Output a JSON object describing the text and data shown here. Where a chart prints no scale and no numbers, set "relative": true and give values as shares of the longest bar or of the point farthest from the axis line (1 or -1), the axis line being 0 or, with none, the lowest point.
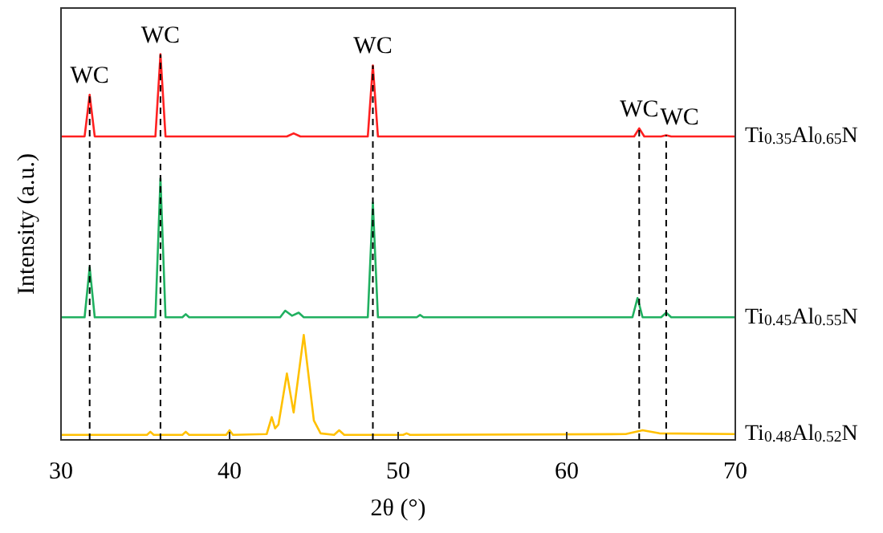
{
  "chart_data": {
    "type": "line",
    "xlabel": "2θ (°)",
    "ylabel": "Intensity (a.u.)",
    "relative": true,
    "xlim": [
      30,
      70
    ],
    "xticks": [
      30,
      40,
      50,
      60,
      70
    ],
    "series": [
      {
        "name": "Ti$_{0.35}$Al$_{0.65}$N",
        "color": "#ff2020",
        "x": [
          30,
          31.4,
          31.7,
          32.0,
          35.6,
          35.9,
          36.2,
          43.4,
          43.8,
          44.2,
          48.2,
          48.5,
          48.8,
          64.0,
          64.3,
          64.6,
          65.6,
          65.9,
          66.2,
          70
        ],
        "values": [
          0.787,
          0.787,
          0.895,
          0.787,
          0.787,
          1.0,
          0.787,
          0.787,
          0.795,
          0.787,
          0.787,
          0.971,
          0.787,
          0.787,
          0.808,
          0.787,
          0.787,
          0.79,
          0.787,
          0.787
        ]
      },
      {
        "name": "Ti$_{0.45}$Al$_{0.55}$N",
        "color": "#20b060",
        "x": [
          30,
          31.4,
          31.7,
          32.0,
          35.6,
          35.9,
          36.2,
          37.2,
          37.4,
          37.6,
          43.0,
          43.3,
          43.7,
          44.1,
          44.4,
          48.2,
          48.5,
          48.8,
          51.1,
          51.3,
          51.5,
          63.9,
          64.2,
          64.5,
          65.6,
          65.9,
          66.2,
          70
        ],
        "values": [
          0.318,
          0.318,
          0.448,
          0.318,
          0.318,
          0.678,
          0.318,
          0.318,
          0.326,
          0.318,
          0.318,
          0.335,
          0.322,
          0.33,
          0.318,
          0.318,
          0.615,
          0.318,
          0.318,
          0.324,
          0.318,
          0.318,
          0.368,
          0.318,
          0.318,
          0.33,
          0.318,
          0.318
        ]
      },
      {
        "name": "Ti$_{0.48}$Al$_{0.52}$N",
        "color": "#ffc000",
        "x": [
          30,
          35.1,
          35.3,
          35.5,
          37.2,
          37.4,
          37.6,
          39.8,
          40.0,
          40.2,
          42.2,
          42.5,
          42.7,
          42.9,
          43.4,
          43.8,
          44.4,
          45.0,
          45.4,
          46.2,
          46.5,
          46.8,
          50.3,
          50.5,
          50.7,
          63.5,
          64.5,
          65.5,
          70
        ],
        "values": [
          0.013,
          0.013,
          0.021,
          0.013,
          0.013,
          0.021,
          0.013,
          0.013,
          0.025,
          0.013,
          0.015,
          0.059,
          0.03,
          0.04,
          0.172,
          0.071,
          0.272,
          0.05,
          0.017,
          0.013,
          0.025,
          0.013,
          0.013,
          0.017,
          0.013,
          0.015,
          0.025,
          0.017,
          0.015
        ]
      }
    ],
    "ref_lines": [
      {
        "axis": "x",
        "value": 31.7,
        "label": "WC",
        "color": "#000000",
        "line_style": "dashed"
      },
      {
        "axis": "x",
        "value": 35.9,
        "label": "WC",
        "color": "#000000",
        "line_style": "dashed"
      },
      {
        "axis": "x",
        "value": 48.5,
        "label": "WC",
        "color": "#000000",
        "line_style": "dashed"
      },
      {
        "axis": "x",
        "value": 64.3,
        "label": "WC",
        "color": "#000000",
        "line_style": "dashed"
      },
      {
        "axis": "x",
        "value": 65.9,
        "label": "WC",
        "color": "#000000",
        "line_style": "dashed"
      }
    ]
  }
}
